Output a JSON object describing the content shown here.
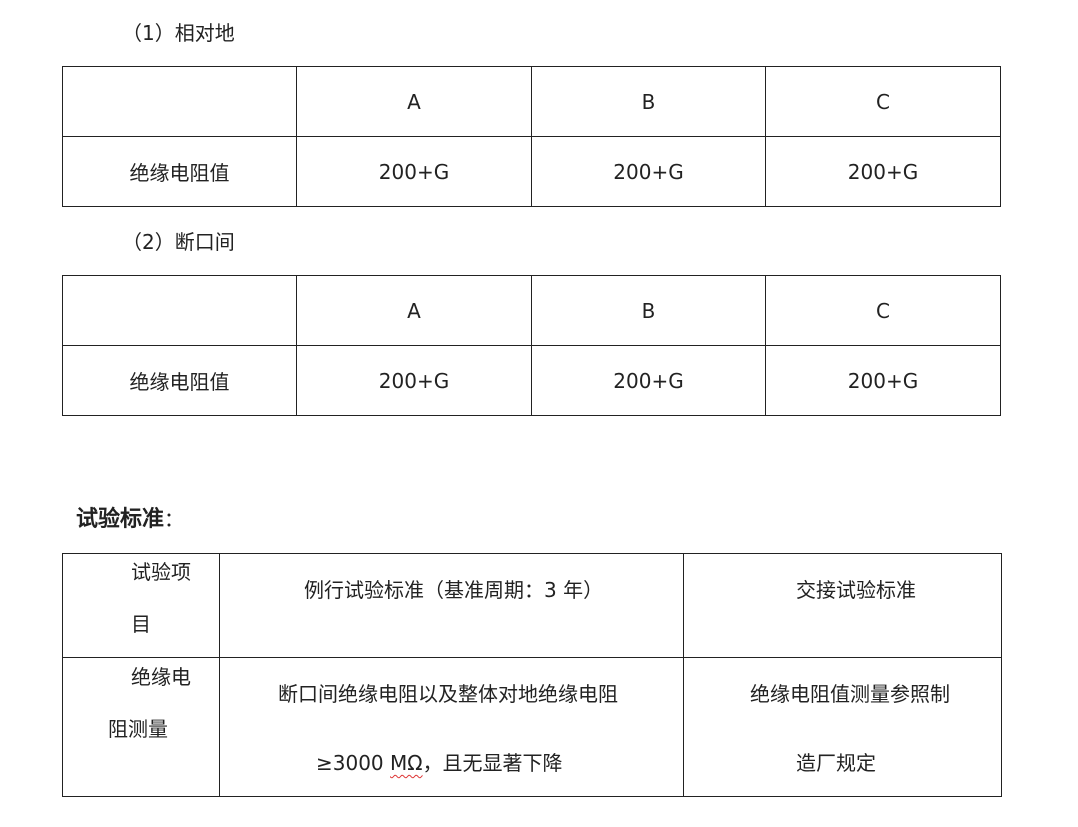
{
  "section1": {
    "title": "（1）相对地",
    "headers": [
      "",
      "A",
      "B",
      "C"
    ],
    "row": {
      "label": "绝缘电阻值",
      "values": [
        "200+G",
        "200+G",
        "200+G"
      ]
    }
  },
  "section2": {
    "title": "（2）断口间",
    "headers": [
      "",
      "A",
      "B",
      "C"
    ],
    "row": {
      "label": "绝缘电阻值",
      "values": [
        "200+G",
        "200+G",
        "200+G"
      ]
    }
  },
  "standards": {
    "heading": "试验标准",
    "heading_colon": "：",
    "headers": {
      "item_line1": "试验项",
      "item_line2": "目",
      "routine": "例行试验标准（基准周期：3 年）",
      "handover": "交接试验标准"
    },
    "row": {
      "item_line1": "绝缘电",
      "item_line2": "阻测量",
      "routine_line1": "断口间绝缘电阻以及整体对地绝缘电阻",
      "routine_line2_pre": "≥3000 ",
      "routine_line2_unit": "MΩ",
      "routine_line2_post": "，且无显著下降",
      "handover_line1": "绝缘电阻值测量参照制",
      "handover_line2": "造厂规定"
    }
  }
}
